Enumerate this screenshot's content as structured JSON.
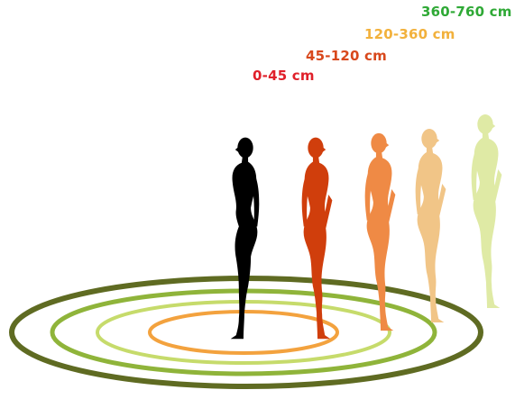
{
  "zones": [
    {
      "label": "0-45 cm",
      "color": "#e0202a",
      "figure_color": "#000000",
      "ring_color": "#f3a23e"
    },
    {
      "label": "45-120 cm",
      "color": "#d8481c",
      "figure_color": "#d03e0c",
      "ring_color": "#c6db6b"
    },
    {
      "label": "120-360 cm",
      "color": "#f2b13c",
      "figure_color": "#ef8a45",
      "ring_color": "#8fb43a"
    },
    {
      "label": "360-760 cm",
      "color": "#2fa936",
      "figure_color": "#f1c587",
      "ring_color": "#5f6b22"
    }
  ],
  "extra_figure_color": "#dfeaa5"
}
